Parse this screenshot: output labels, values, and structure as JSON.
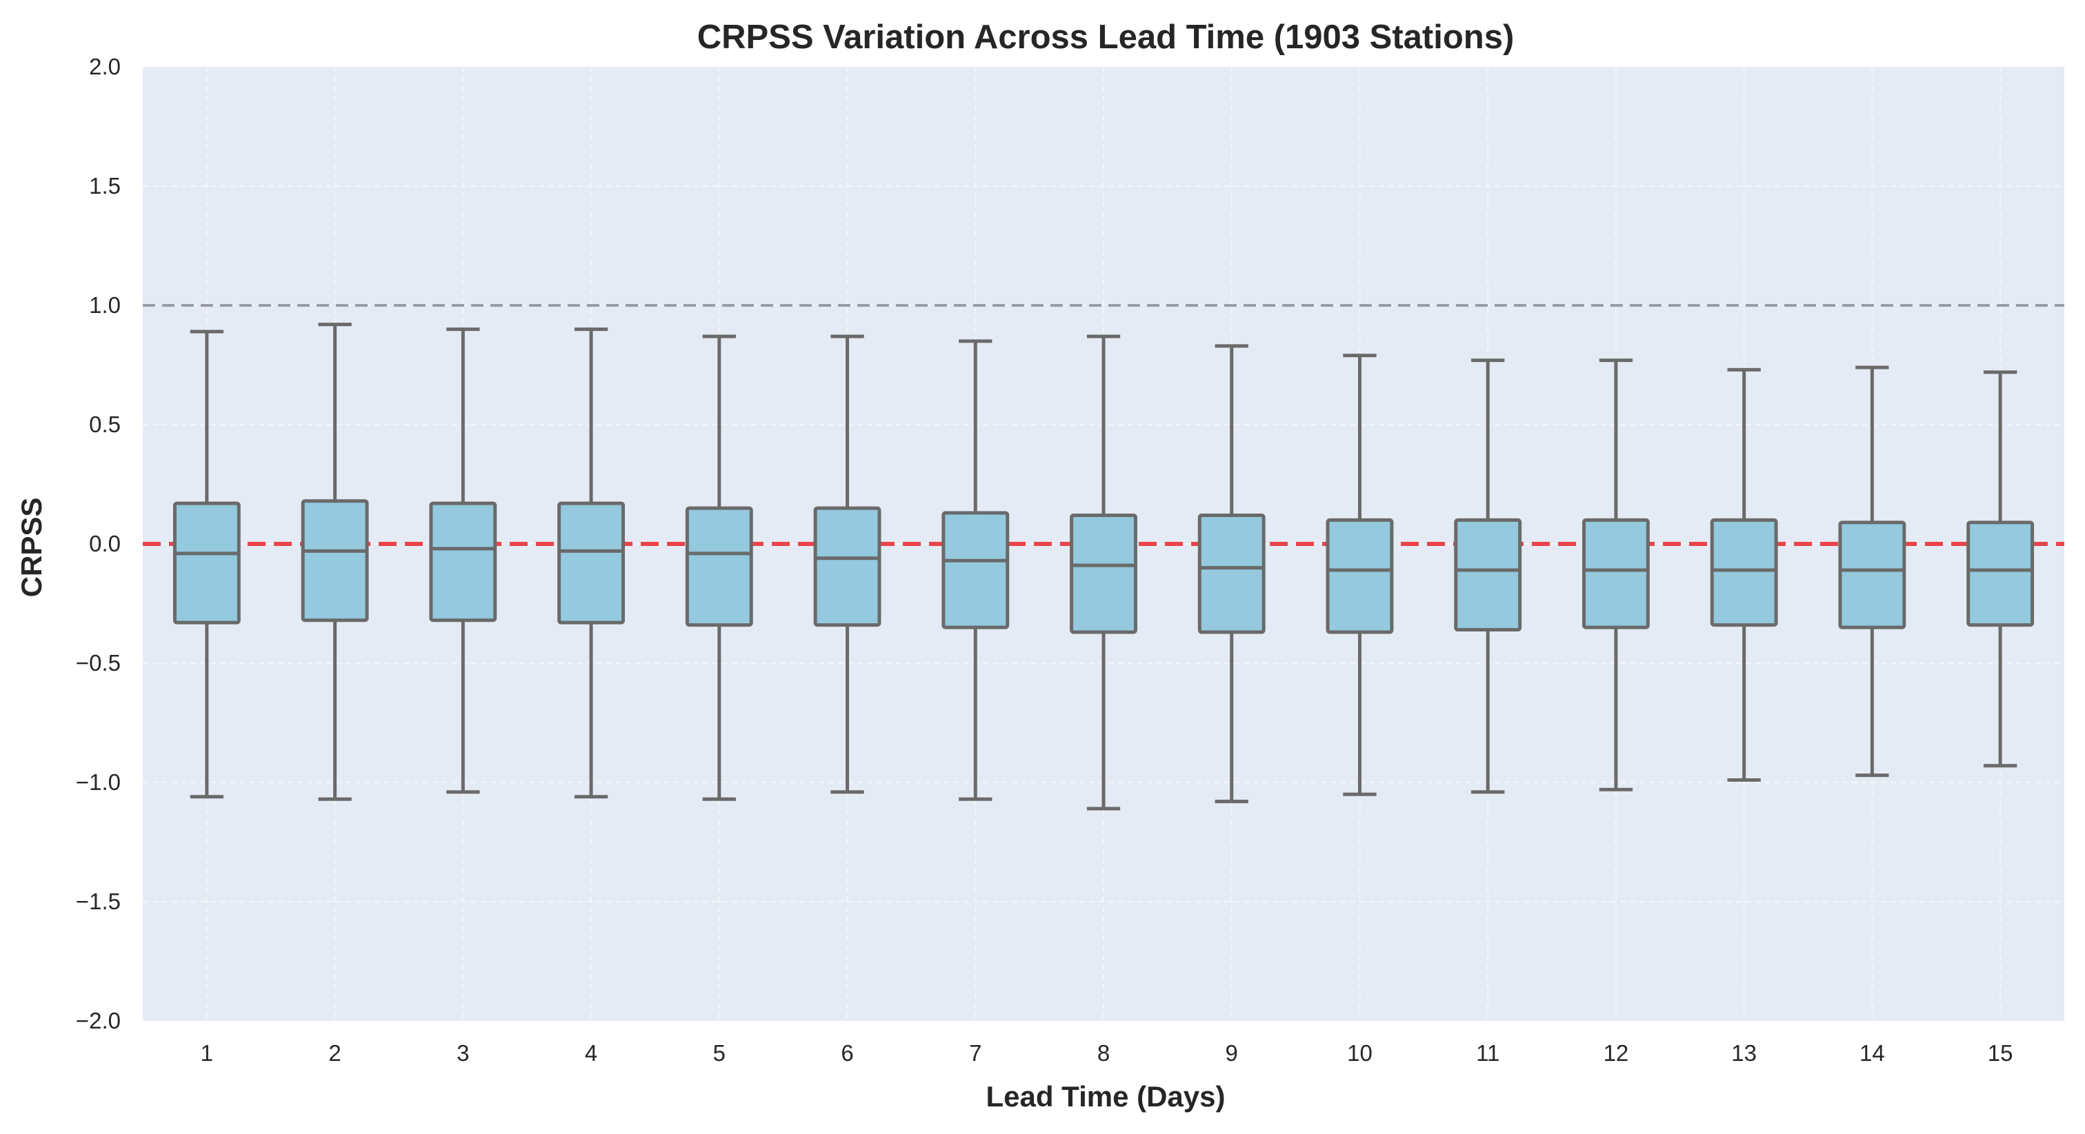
{
  "chart_data": {
    "type": "box",
    "title": "CRPSS Variation Across Lead Time (1903 Stations)",
    "xlabel": "Lead Time (Days)",
    "ylabel": "CRPSS",
    "ylim": [
      -2.0,
      2.0
    ],
    "yticks": [
      2.0,
      1.5,
      1.0,
      0.5,
      0.0,
      -0.5,
      -1.0,
      -1.5,
      -2.0
    ],
    "ytick_labels": [
      "2.0",
      "1.5",
      "1.0",
      "0.5",
      "0.0",
      "−0.5",
      "−1.0",
      "−1.5",
      "−2.0"
    ],
    "categories": [
      "1",
      "2",
      "3",
      "4",
      "5",
      "6",
      "7",
      "8",
      "9",
      "10",
      "11",
      "12",
      "13",
      "14",
      "15"
    ],
    "boxes": [
      {
        "whisker_low": -1.06,
        "q1": -0.33,
        "median": -0.04,
        "q3": 0.17,
        "whisker_high": 0.89
      },
      {
        "whisker_low": -1.07,
        "q1": -0.32,
        "median": -0.03,
        "q3": 0.18,
        "whisker_high": 0.92
      },
      {
        "whisker_low": -1.04,
        "q1": -0.32,
        "median": -0.02,
        "q3": 0.17,
        "whisker_high": 0.9
      },
      {
        "whisker_low": -1.06,
        "q1": -0.33,
        "median": -0.03,
        "q3": 0.17,
        "whisker_high": 0.9
      },
      {
        "whisker_low": -1.07,
        "q1": -0.34,
        "median": -0.04,
        "q3": 0.15,
        "whisker_high": 0.87
      },
      {
        "whisker_low": -1.04,
        "q1": -0.34,
        "median": -0.06,
        "q3": 0.15,
        "whisker_high": 0.87
      },
      {
        "whisker_low": -1.07,
        "q1": -0.35,
        "median": -0.07,
        "q3": 0.13,
        "whisker_high": 0.85
      },
      {
        "whisker_low": -1.11,
        "q1": -0.37,
        "median": -0.09,
        "q3": 0.12,
        "whisker_high": 0.87
      },
      {
        "whisker_low": -1.08,
        "q1": -0.37,
        "median": -0.1,
        "q3": 0.12,
        "whisker_high": 0.83
      },
      {
        "whisker_low": -1.05,
        "q1": -0.37,
        "median": -0.11,
        "q3": 0.1,
        "whisker_high": 0.79
      },
      {
        "whisker_low": -1.04,
        "q1": -0.36,
        "median": -0.11,
        "q3": 0.1,
        "whisker_high": 0.77
      },
      {
        "whisker_low": -1.03,
        "q1": -0.35,
        "median": -0.11,
        "q3": 0.1,
        "whisker_high": 0.77
      },
      {
        "whisker_low": -0.99,
        "q1": -0.34,
        "median": -0.11,
        "q3": 0.1,
        "whisker_high": 0.73
      },
      {
        "whisker_low": -0.97,
        "q1": -0.35,
        "median": -0.11,
        "q3": 0.09,
        "whisker_high": 0.74
      },
      {
        "whisker_low": -0.93,
        "q1": -0.34,
        "median": -0.11,
        "q3": 0.09,
        "whisker_high": 0.72
      }
    ],
    "reference_lines": [
      {
        "y": 0.0,
        "color": "#e8454a",
        "style": "dashed"
      },
      {
        "y": 1.0,
        "color": "#9a9ca4",
        "style": "dashed"
      }
    ],
    "grid": true,
    "colors": {
      "plot_background": "#e5ebf4",
      "box_fill": "#94c9de",
      "box_edge": "#6a6a6a",
      "grid": "#f3f5f9"
    }
  }
}
